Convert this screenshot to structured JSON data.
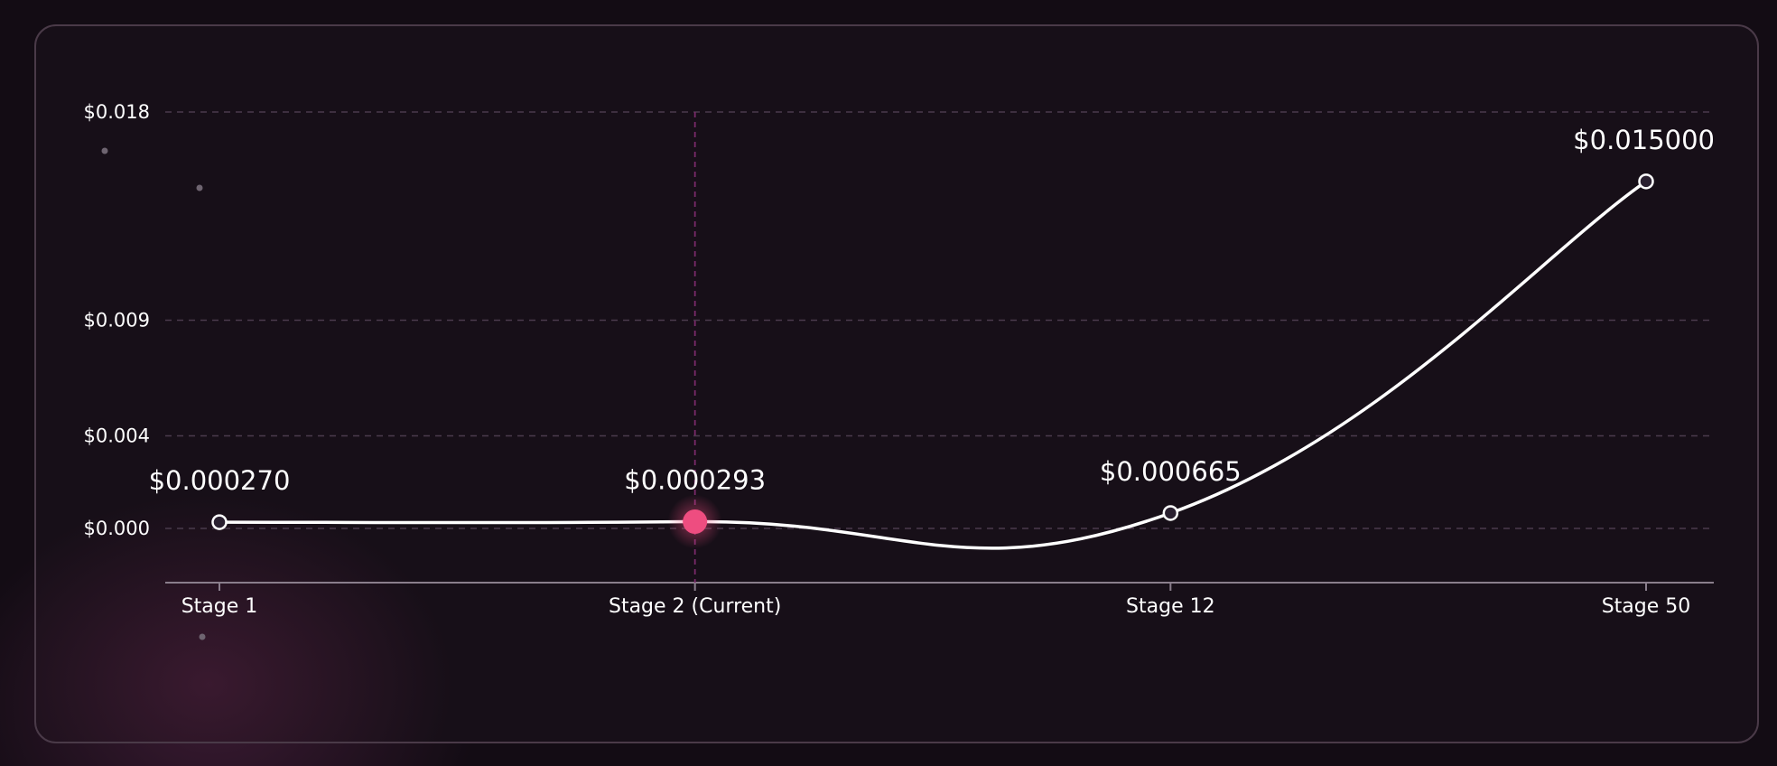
{
  "chart_data": {
    "type": "line",
    "categories": [
      "Stage 1",
      "Stage 2 (Current)",
      "Stage 12",
      "Stage 50"
    ],
    "series": [
      {
        "values": [
          0.00027,
          0.000293,
          0.000665,
          0.015
        ],
        "data_labels": [
          "$0.000270",
          "$0.000293",
          "$0.000665",
          "$0.015000"
        ]
      }
    ],
    "y_ticks": [
      0,
      0.004,
      0.009,
      0.018
    ],
    "y_tick_labels": [
      "$0.000",
      "$0.004",
      "$0.009",
      "$0.018"
    ],
    "ylim": [
      -0.0021,
      0.018
    ],
    "current_index": 1,
    "title": "",
    "xlabel": "",
    "ylabel": "",
    "grid": true,
    "legend": "none",
    "colors": {
      "line": "#ffffff",
      "current_point": "#ee4d80",
      "grid": "#4a3a4c",
      "axis": "#8a7e8c",
      "current_marker_line": "#7a2a6a",
      "point_fill": "#2a2030"
    }
  }
}
